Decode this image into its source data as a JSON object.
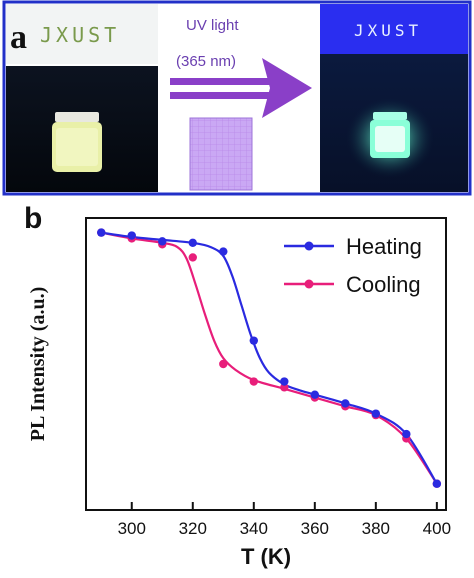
{
  "panel_a": {
    "letter": "a",
    "brand_left": "JXUST",
    "brand_right": "JXUST",
    "uv_line1": "UV light",
    "uv_line2": "(365 nm)",
    "colors": {
      "frame": "#2230c8",
      "arrow": "#8a3fc8",
      "filter": "#c8a8f0",
      "glow": "#70ffd8"
    }
  },
  "chart_data": {
    "type": "line",
    "panel_letter": "b",
    "xlabel": "T (K)",
    "ylabel": "PL Intensity (a.u.)",
    "xlim": [
      285,
      403
    ],
    "ylim": [
      0,
      1
    ],
    "xticks": [
      300,
      320,
      340,
      360,
      380,
      400
    ],
    "legend_position": "top-right",
    "grid": false,
    "series": [
      {
        "name": "Heating",
        "color": "#2a2ae0",
        "x": [
          290,
          300,
          310,
          320,
          330,
          340,
          350,
          360,
          370,
          380,
          390,
          400
        ],
        "y": [
          0.95,
          0.94,
          0.92,
          0.915,
          0.885,
          0.58,
          0.44,
          0.395,
          0.365,
          0.33,
          0.26,
          0.09
        ],
        "curve_x": [
          290,
          300,
          310,
          320,
          326,
          330,
          333,
          336,
          339,
          342,
          345,
          350,
          355,
          360,
          370,
          380,
          390,
          400
        ],
        "curve_y": [
          0.95,
          0.935,
          0.925,
          0.915,
          0.9,
          0.87,
          0.8,
          0.7,
          0.6,
          0.52,
          0.47,
          0.43,
          0.41,
          0.395,
          0.365,
          0.33,
          0.26,
          0.09
        ]
      },
      {
        "name": "Cooling",
        "color": "#e81e7a",
        "x": [
          290,
          300,
          310,
          320,
          330,
          340,
          350,
          360,
          370,
          380,
          390,
          400
        ],
        "y": [
          0.95,
          0.93,
          0.91,
          0.865,
          0.5,
          0.44,
          0.42,
          0.385,
          0.355,
          0.325,
          0.245,
          0.09
        ],
        "curve_x": [
          290,
          300,
          310,
          315,
          318,
          321,
          324,
          327,
          330,
          334,
          340,
          350,
          360,
          370,
          380,
          390,
          400
        ],
        "curve_y": [
          0.95,
          0.93,
          0.915,
          0.9,
          0.86,
          0.77,
          0.67,
          0.58,
          0.52,
          0.48,
          0.445,
          0.415,
          0.385,
          0.355,
          0.325,
          0.245,
          0.09
        ]
      }
    ]
  }
}
